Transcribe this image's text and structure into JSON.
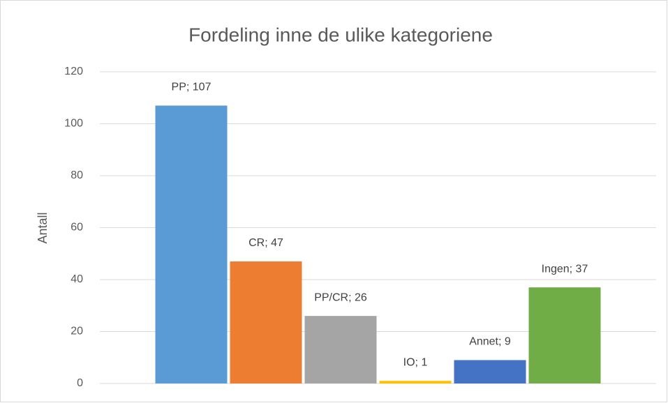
{
  "chart_data": {
    "type": "bar",
    "title": "Fordeling inne de ulike kategoriene",
    "ylabel": "Antall",
    "categories": [
      null
    ],
    "series": [
      {
        "name": "PP",
        "color": "#5b9bd5",
        "values": [
          107
        ],
        "value_labels": [
          "PP; 107"
        ]
      },
      {
        "name": "CR",
        "color": "#ed7d31",
        "values": [
          47
        ],
        "value_labels": [
          "CR; 47"
        ]
      },
      {
        "name": "PP/CR",
        "color": "#a5a5a5",
        "values": [
          26
        ],
        "value_labels": [
          "PP/CR; 26"
        ]
      },
      {
        "name": "IO",
        "color": "#ffc000",
        "values": [
          1
        ],
        "value_labels": [
          "IO; 1"
        ]
      },
      {
        "name": "Annet",
        "color": "#4472c4",
        "values": [
          9
        ],
        "value_labels": [
          "Annet; 9"
        ]
      },
      {
        "name": "Ingen",
        "color": "#70ad47",
        "values": [
          37
        ],
        "value_labels": [
          "Ingen; 37"
        ]
      }
    ],
    "ylim": [
      0,
      120
    ],
    "yticks": [
      0,
      20,
      40,
      60,
      80,
      100,
      120
    ],
    "grid": true
  }
}
